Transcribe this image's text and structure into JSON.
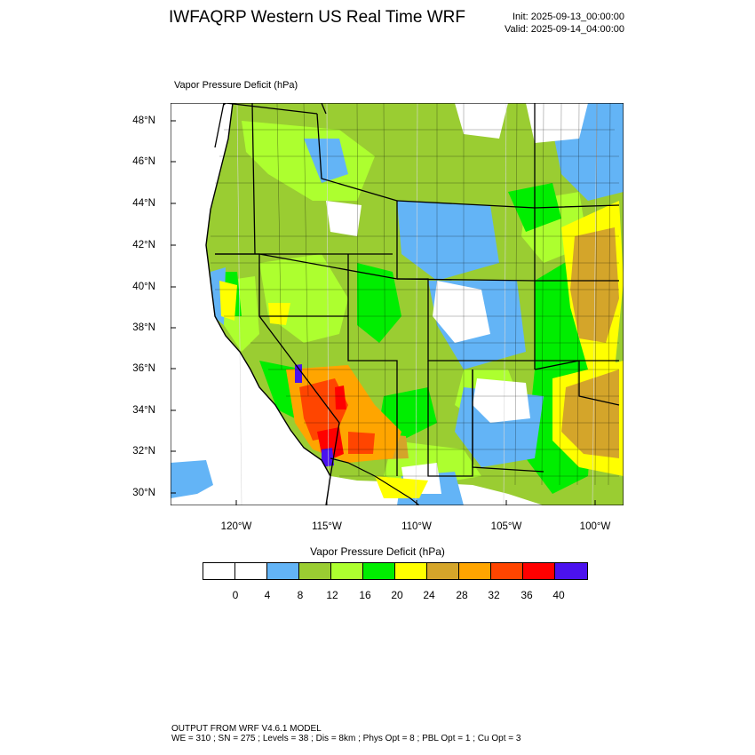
{
  "header": {
    "title": "IWFAQRP Western US Real Time WRF",
    "init": "Init: 2025-09-13_00:00:00",
    "valid": "Valid: 2025-09-14_04:00:00"
  },
  "plot": {
    "label": "Vapor Pressure Deficit   (hPa)",
    "lat_labels": [
      "48°N",
      "46°N",
      "44°N",
      "42°N",
      "40°N",
      "38°N",
      "36°N",
      "34°N",
      "32°N",
      "30°N"
    ],
    "lon_labels": [
      "120°W",
      "115°W",
      "110°W",
      "105°W",
      "100°W"
    ]
  },
  "colorbar": {
    "title": "Vapor Pressure Deficit  (hPa)",
    "tick_labels": [
      "0",
      "4",
      "8",
      "12",
      "16",
      "20",
      "24",
      "28",
      "32",
      "36",
      "40"
    ],
    "colors": [
      "#ffffff",
      "#ffffff",
      "#63b4f6",
      "#9acd32",
      "#adff2f",
      "#00ee00",
      "#ffff00",
      "#d4a52a",
      "#ffa500",
      "#ff4500",
      "#ff0000",
      "#4b12ee"
    ]
  },
  "footer": {
    "line1": "OUTPUT FROM WRF V4.6.1 MODEL",
    "line2": "WE = 310 ; SN = 275 ; Levels = 38 ; Dis = 8km ; Phys Opt = 8 ; PBL Opt = 1 ; Cu Opt = 3"
  }
}
